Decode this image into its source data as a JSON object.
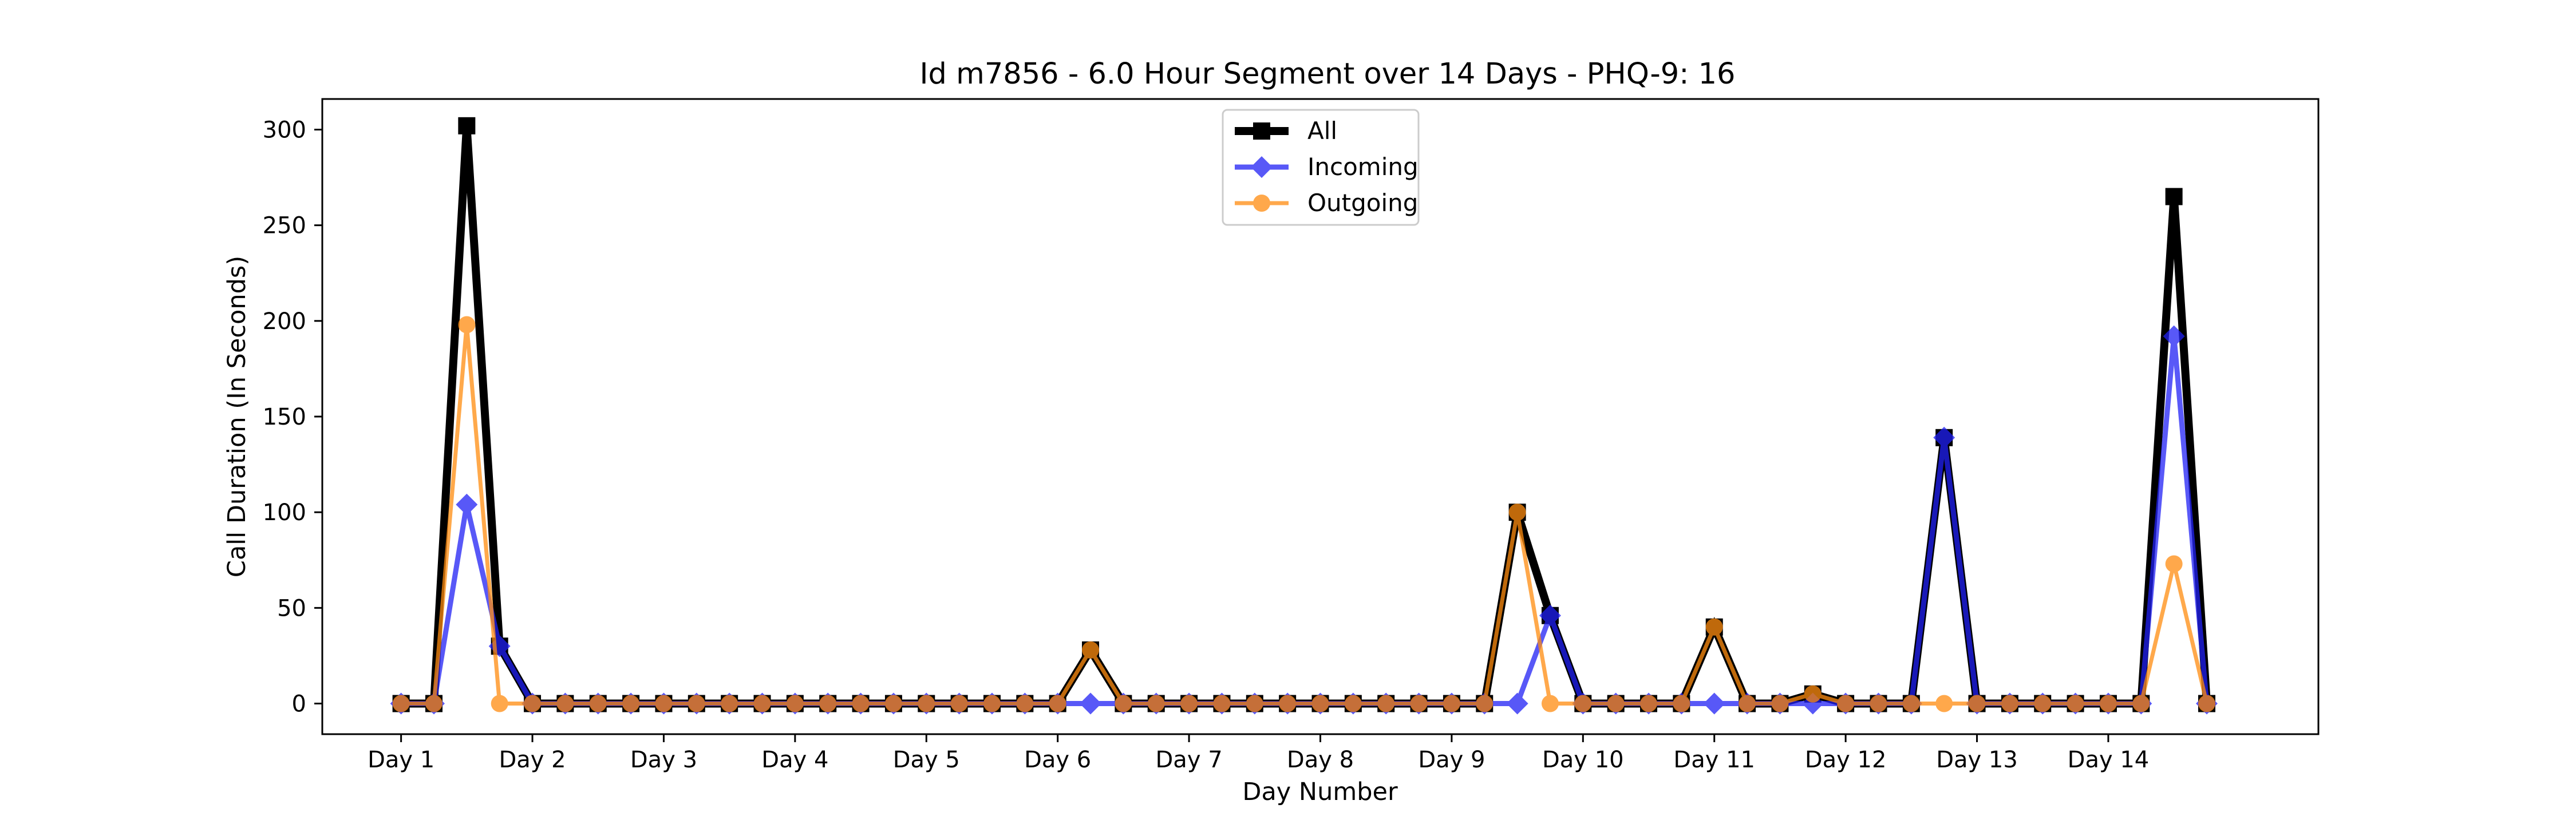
{
  "chart_data": {
    "type": "line",
    "title": "Id m7856 - 6.0 Hour Segment over 14 Days - PHQ-9: 16",
    "xlabel": "Day Number",
    "ylabel": "Call Duration (In Seconds)",
    "x_tick_labels": [
      "Day 1",
      "Day 2",
      "Day 3",
      "Day 4",
      "Day 5",
      "Day 6",
      "Day 7",
      "Day 8",
      "Day 9",
      "Day 10",
      "Day 11",
      "Day 12",
      "Day 13",
      "Day 14"
    ],
    "y_ticks": [
      0,
      50,
      100,
      150,
      200,
      250,
      300
    ],
    "ylim": [
      -16,
      316
    ],
    "xlim": [
      -2.4,
      58.4
    ],
    "grid": false,
    "legend_position": "top-center",
    "series": [
      {
        "name": "All",
        "color": "#000000",
        "marker": "square",
        "values": [
          0,
          0,
          302,
          30,
          0,
          0,
          0,
          0,
          0,
          0,
          0,
          0,
          0,
          0,
          0,
          0,
          0,
          0,
          0,
          0,
          0,
          28,
          0,
          0,
          0,
          0,
          0,
          0,
          0,
          0,
          0,
          0,
          0,
          0,
          100,
          46,
          0,
          0,
          0,
          0,
          40,
          0,
          0,
          5,
          0,
          0,
          0,
          139,
          0,
          0,
          0,
          0,
          0,
          0,
          265,
          0
        ]
      },
      {
        "name": "Incoming",
        "color": "#2121f5",
        "marker": "diamond",
        "values": [
          0,
          0,
          104,
          30,
          0,
          0,
          0,
          0,
          0,
          0,
          0,
          0,
          0,
          0,
          0,
          0,
          0,
          0,
          0,
          0,
          0,
          0,
          0,
          0,
          0,
          0,
          0,
          0,
          0,
          0,
          0,
          0,
          0,
          0,
          0,
          46,
          0,
          0,
          0,
          0,
          0,
          0,
          0,
          0,
          0,
          0,
          0,
          139,
          0,
          0,
          0,
          0,
          0,
          0,
          192,
          0
        ]
      },
      {
        "name": "Outgoing",
        "color": "#ff8c0f",
        "marker": "circle",
        "values": [
          0,
          0,
          198,
          0,
          0,
          0,
          0,
          0,
          0,
          0,
          0,
          0,
          0,
          0,
          0,
          0,
          0,
          0,
          0,
          0,
          0,
          28,
          0,
          0,
          0,
          0,
          0,
          0,
          0,
          0,
          0,
          0,
          0,
          0,
          100,
          0,
          0,
          0,
          0,
          0,
          40,
          0,
          0,
          5,
          0,
          0,
          0,
          0,
          0,
          0,
          0,
          0,
          0,
          0,
          73,
          0
        ]
      }
    ]
  }
}
